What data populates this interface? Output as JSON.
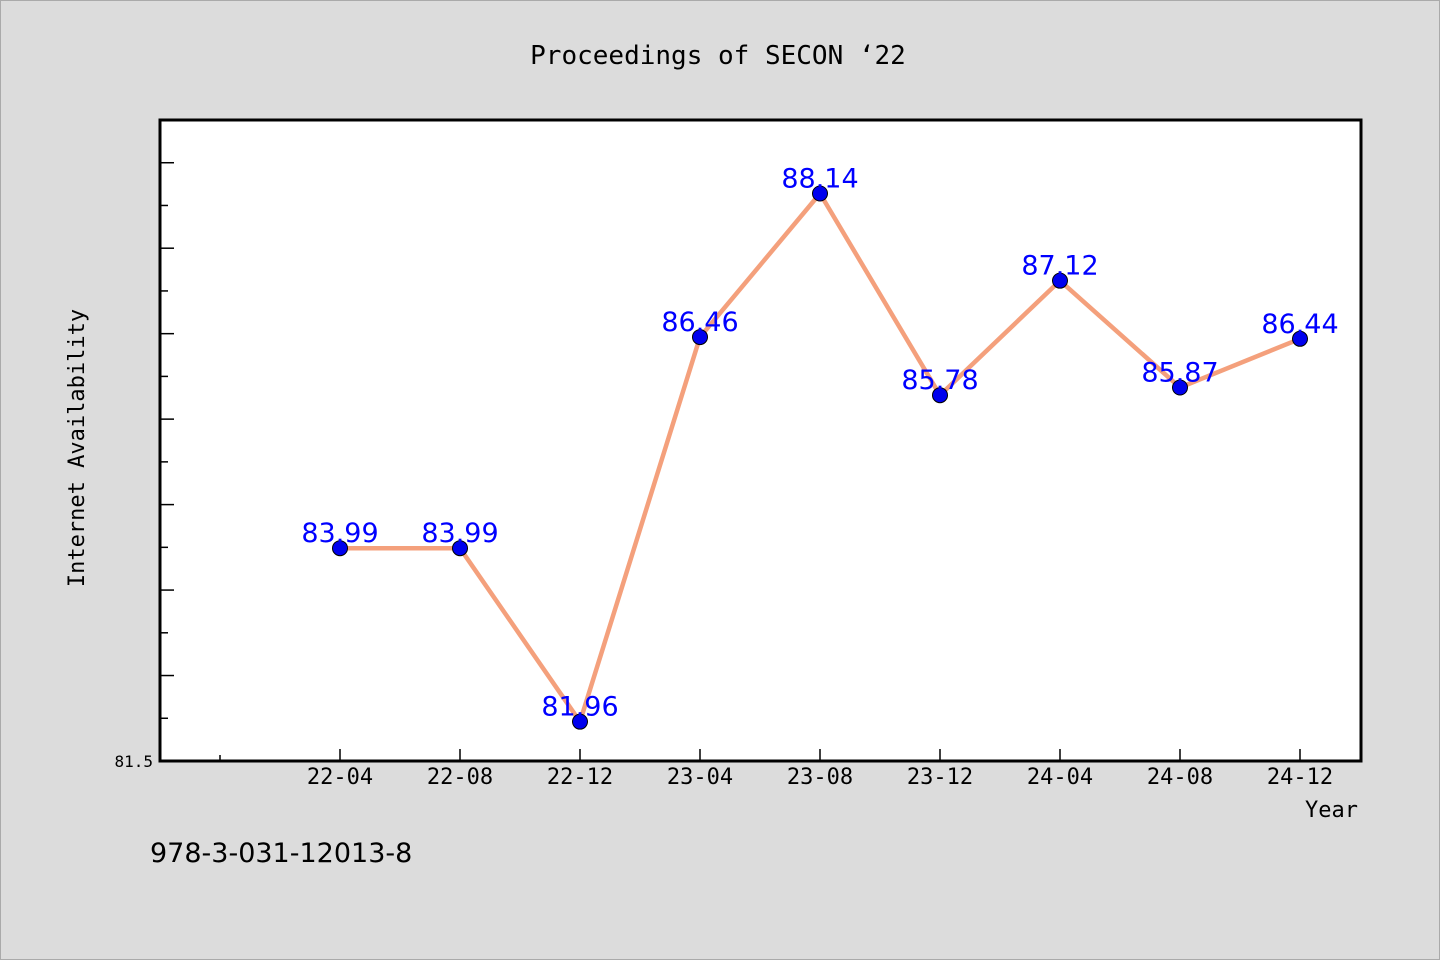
{
  "chart_data": {
    "type": "line",
    "title": "Proceedings of SECON ‘22",
    "xlabel": "Year",
    "ylabel": "Internet Availability",
    "categories": [
      "22-04",
      "22-08",
      "22-12",
      "23-04",
      "23-08",
      "23-12",
      "24-04",
      "24-08",
      "24-12"
    ],
    "series": [
      {
        "values": [
          83.99,
          83.99,
          81.96,
          86.46,
          88.14,
          85.78,
          87.12,
          85.87,
          86.44
        ]
      }
    ],
    "ylim": [
      81.5,
      89.0
    ],
    "y_tick_labels": [
      "81.5"
    ],
    "grid": false,
    "legend": "none",
    "line_color": "#f4a07c",
    "marker_color": "#0000ee",
    "label_color": "#0000ff"
  },
  "footer_text": "978-3-031-12013-8"
}
